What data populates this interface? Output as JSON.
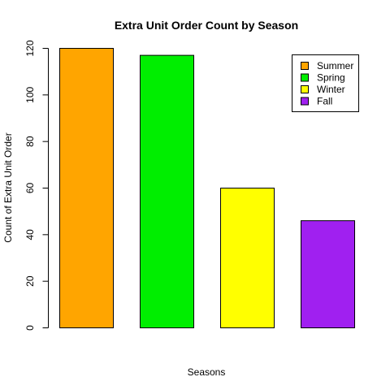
{
  "chart_data": {
    "type": "bar",
    "title": "Extra Unit Order Count by Season",
    "xlabel": "Seasons",
    "ylabel": "Count of Extra Unit Order",
    "categories": [
      "Summer",
      "Spring",
      "Winter",
      "Fall"
    ],
    "values": [
      120,
      117,
      60,
      46
    ],
    "colors": [
      "#FFA500",
      "#00EE00",
      "#FFFF00",
      "#A020F0"
    ],
    "ylim": [
      0,
      120
    ],
    "yticks": [
      0,
      20,
      40,
      60,
      80,
      100,
      120
    ],
    "grid": false,
    "legend": {
      "placement": "top-right",
      "entries": [
        "Summer",
        "Spring",
        "Winter",
        "Fall"
      ]
    }
  }
}
